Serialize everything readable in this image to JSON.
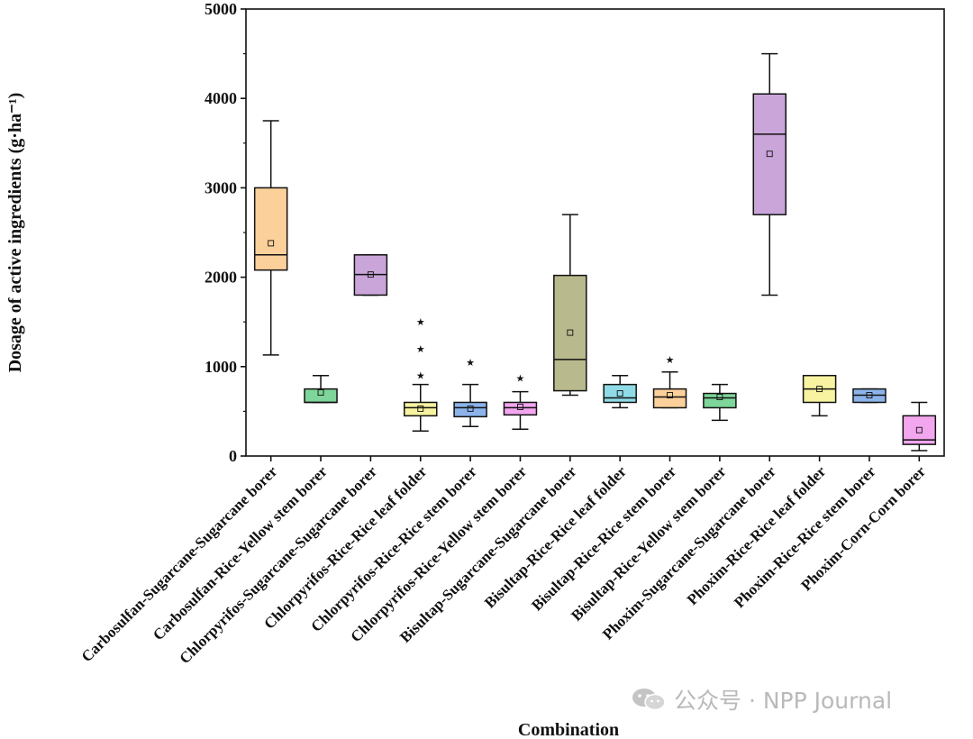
{
  "chart_data": {
    "type": "box",
    "xlabel": "Combination",
    "ylabel": "Dosage of active ingredients (g·ha⁻¹)",
    "ylim": [
      0,
      5000
    ],
    "yticks": [
      0,
      1000,
      2000,
      3000,
      4000,
      5000
    ],
    "grid": false,
    "categories": [
      "Carbosulfan-Sugarcane-Sugarcane borer",
      "Carbosulfan-Rice-Yellow stem borer",
      "Chlorpyrifos-Sugarcane-Sugarcane borer",
      "Chlorpyrifos-Rice-Rice leaf folder",
      "Chlorpyrifos-Rice-Rice stem borer",
      "Chlorpyrifos-Rice-Yellow stem borer",
      "Bisultap-Sugarcane-Sugarcane borer",
      "Bisultap-Rice-Rice leaf folder",
      "Bisultap-Rice-Rice stem borer",
      "Bisultap-Rice-Yellow stem borer",
      "Phoxim-Sugarcane-Sugarcane borer",
      "Phoxim-Rice-Rice leaf folder",
      "Phoxim-Rice-Rice stem borer",
      "Phoxim-Corn-Corn borer"
    ],
    "boxes": [
      {
        "min": 1130,
        "q1": 2080,
        "median": 2250,
        "q3": 3000,
        "max": 3750,
        "mean": 2380,
        "outliers": [],
        "color": "#fcd09a"
      },
      {
        "min": 600,
        "q1": 600,
        "median": 600,
        "q3": 750,
        "max": 900,
        "mean": 710,
        "outliers": [],
        "color": "#7ed69a"
      },
      {
        "min": 1800,
        "q1": 1800,
        "median": 2030,
        "q3": 2250,
        "max": 2250,
        "mean": 2030,
        "outliers": [],
        "color": "#c9a5d9"
      },
      {
        "min": 280,
        "q1": 450,
        "median": 540,
        "q3": 600,
        "max": 800,
        "mean": 530,
        "outliers": [
          900,
          1200,
          1500
        ],
        "color": "#f7f3a1"
      },
      {
        "min": 330,
        "q1": 440,
        "median": 540,
        "q3": 600,
        "max": 800,
        "mean": 530,
        "outliers": [
          1050
        ],
        "color": "#8cb4ea"
      },
      {
        "min": 300,
        "q1": 460,
        "median": 540,
        "q3": 600,
        "max": 720,
        "mean": 550,
        "outliers": [
          870
        ],
        "color": "#f2a6ee"
      },
      {
        "min": 680,
        "q1": 730,
        "median": 1080,
        "q3": 2020,
        "max": 2700,
        "mean": 1380,
        "outliers": [],
        "color": "#b9b98e"
      },
      {
        "min": 540,
        "q1": 600,
        "median": 650,
        "q3": 800,
        "max": 900,
        "mean": 700,
        "outliers": [],
        "color": "#8edbe6"
      },
      {
        "min": 540,
        "q1": 540,
        "median": 660,
        "q3": 750,
        "max": 940,
        "mean": 680,
        "outliers": [
          1080
        ],
        "color": "#fcd09a"
      },
      {
        "min": 400,
        "q1": 540,
        "median": 650,
        "q3": 700,
        "max": 800,
        "mean": 660,
        "outliers": [],
        "color": "#7ed69a"
      },
      {
        "min": 1800,
        "q1": 2700,
        "median": 3600,
        "q3": 4050,
        "max": 4500,
        "mean": 3380,
        "outliers": [],
        "color": "#c9a5d9"
      },
      {
        "min": 450,
        "q1": 600,
        "median": 750,
        "q3": 900,
        "max": 900,
        "mean": 750,
        "outliers": [],
        "color": "#f7f3a1"
      },
      {
        "min": 600,
        "q1": 600,
        "median": 680,
        "q3": 750,
        "max": 750,
        "mean": 680,
        "outliers": [],
        "color": "#8cb4ea"
      },
      {
        "min": 60,
        "q1": 130,
        "median": 180,
        "q3": 450,
        "max": 600,
        "mean": 290,
        "outliers": [],
        "color": "#f2a6ee"
      }
    ]
  },
  "watermark": {
    "text": "公众号 · NPP Journal",
    "icon": "wechat-icon"
  }
}
